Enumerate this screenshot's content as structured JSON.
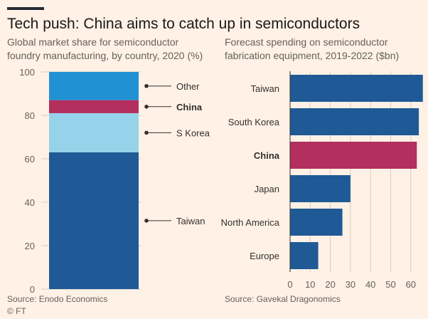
{
  "header": {
    "title": "Tech push: China aims to catch up in semiconductors"
  },
  "left_chart": {
    "subtitle": "Global market share for semiconductor foundry manufacturing, by country, 2020 (%)",
    "source": "Source: Enodo Economics"
  },
  "right_chart": {
    "subtitle": "Forecast spending on semiconductor fabrication equipment, 2019-2022 ($bn)",
    "source": "Source: Gavekal Dragonomics"
  },
  "credit": "© FT",
  "chart_data": [
    {
      "type": "bar",
      "stacked": true,
      "orientation": "vertical",
      "ylim": [
        0,
        100
      ],
      "yticks": [
        "0",
        "20",
        "40",
        "60",
        "80",
        "100"
      ],
      "gridlines": true,
      "series": [
        {
          "name": "Taiwan",
          "value": 63,
          "color": "#1f5a96",
          "bold": false
        },
        {
          "name": "S Korea",
          "value": 18,
          "color": "#96d3eb",
          "bold": false
        },
        {
          "name": "China",
          "value": 6,
          "color": "#b22f5e",
          "bold": true
        },
        {
          "name": "Other",
          "value": 13,
          "color": "#2191d3",
          "bold": false
        }
      ]
    },
    {
      "type": "bar",
      "orientation": "horizontal",
      "xlim": [
        0,
        67
      ],
      "xticks": [
        "0",
        "10",
        "20",
        "30",
        "40",
        "50",
        "60"
      ],
      "gridlines": true,
      "categories": [
        "Taiwan",
        "South Korea",
        "China",
        "Japan",
        "North America",
        "Europe"
      ],
      "values": [
        66,
        64,
        63,
        30,
        26,
        14
      ],
      "bold_categories": [
        "China"
      ],
      "colors": {
        "default": "#1f5a96",
        "highlight": "#b22f5e"
      }
    }
  ]
}
